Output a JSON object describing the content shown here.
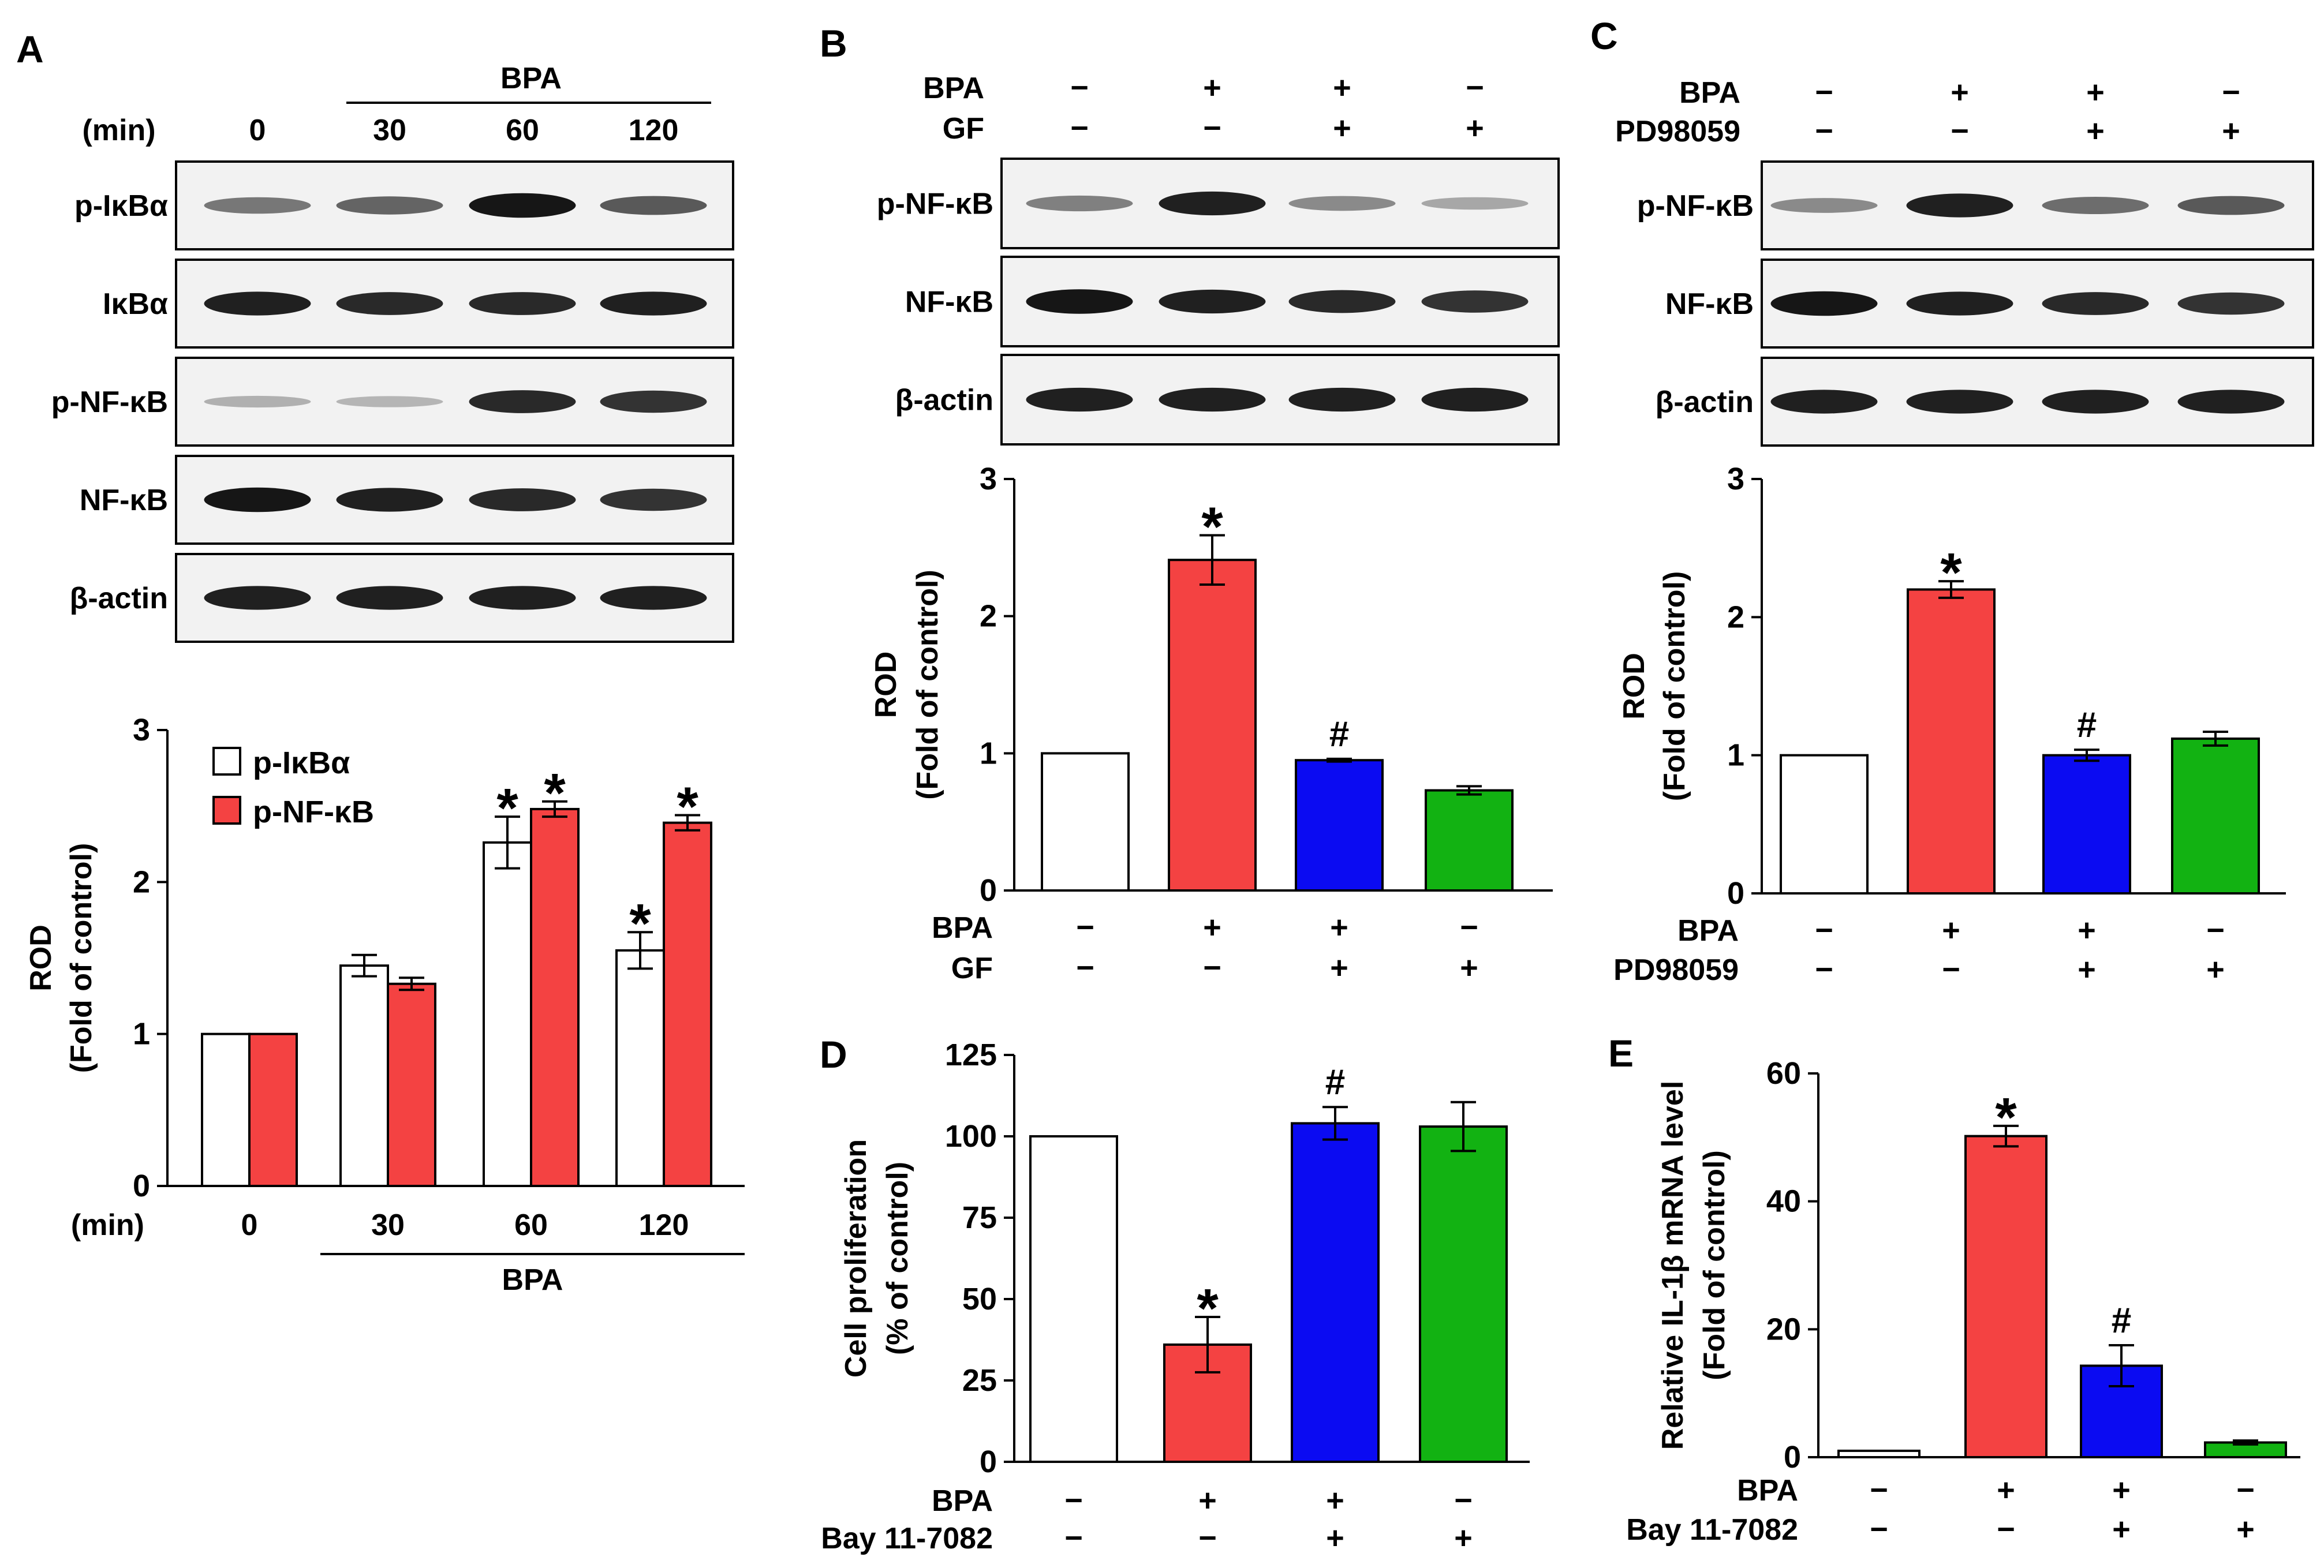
{
  "colors": {
    "ctrl": "#ffffff",
    "bpa": "#f44242",
    "inhib": "#0b0bf2",
    "alone": "#12b212",
    "ink": "#000000",
    "panel": "#f2f2f2"
  },
  "panels": {
    "A": {
      "letter": "A",
      "blot": {
        "treatment_label": "BPA",
        "unit_label": "(min)",
        "lanes": [
          "0",
          "30",
          "60",
          "120"
        ],
        "rows": [
          "p-IκBα",
          "IκBα",
          "p-NF-κB",
          "NF-κB",
          "β-actin"
        ]
      }
    },
    "B": {
      "letter": "B",
      "blot": {
        "conditions": [
          {
            "name": "BPA",
            "signs": [
              "−",
              "+",
              "+",
              "−"
            ]
          },
          {
            "name": "GF",
            "signs": [
              "−",
              "−",
              "+",
              "+"
            ]
          }
        ],
        "rows": [
          "p-NF-κB",
          "NF-κB",
          "β-actin"
        ]
      }
    },
    "C": {
      "letter": "C",
      "blot": {
        "conditions": [
          {
            "name": "BPA",
            "signs": [
              "−",
              "+",
              "+",
              "−"
            ]
          },
          {
            "name": "PD98059",
            "signs": [
              "−",
              "−",
              "+",
              "+"
            ]
          }
        ],
        "rows": [
          "p-NF-κB",
          "NF-κB",
          "β-actin"
        ]
      }
    },
    "D": {
      "letter": "D"
    },
    "E": {
      "letter": "E"
    }
  },
  "chart_data": [
    {
      "panel": "A",
      "type": "bar",
      "categories": [
        "0",
        "30",
        "60",
        "120"
      ],
      "category_prefix": "(min)",
      "group_label": "BPA",
      "ylabel": "ROD",
      "ylabel2": "(Fold of control)",
      "ylim": [
        0,
        3
      ],
      "yticks": [
        0,
        1,
        2,
        3
      ],
      "legend": "top-left",
      "series": [
        {
          "name": "p-IκBα",
          "color": "#ffffff",
          "values": [
            1.0,
            1.45,
            2.26,
            1.55
          ],
          "errors": [
            0,
            0.07,
            0.17,
            0.12
          ],
          "marks": [
            "",
            "",
            "*",
            "*"
          ]
        },
        {
          "name": "p-NF-κB",
          "color": "#f44242",
          "values": [
            1.0,
            1.33,
            2.48,
            2.39
          ],
          "errors": [
            0,
            0.04,
            0.05,
            0.05
          ],
          "marks": [
            "",
            "",
            "*",
            "*"
          ]
        }
      ]
    },
    {
      "panel": "B",
      "type": "bar",
      "ylabel": "ROD",
      "ylabel2": "(Fold of control)",
      "ylim": [
        0,
        3
      ],
      "yticks": [
        0,
        1,
        2,
        3
      ],
      "conditions": [
        {
          "name": "BPA",
          "signs": [
            "−",
            "+",
            "+",
            "−"
          ]
        },
        {
          "name": "GF",
          "signs": [
            "−",
            "−",
            "+",
            "+"
          ]
        }
      ],
      "values": [
        1.0,
        2.41,
        0.95,
        0.73
      ],
      "errors": [
        0,
        0.18,
        0.01,
        0.03
      ],
      "colors": [
        "#ffffff",
        "#f44242",
        "#0b0bf2",
        "#12b212"
      ],
      "marks": [
        "",
        "*",
        "#",
        ""
      ]
    },
    {
      "panel": "C",
      "type": "bar",
      "ylabel": "ROD",
      "ylabel2": "(Fold of control)",
      "ylim": [
        0,
        3
      ],
      "yticks": [
        0,
        1,
        2,
        3
      ],
      "conditions": [
        {
          "name": "BPA",
          "signs": [
            "−",
            "+",
            "+",
            "−"
          ]
        },
        {
          "name": "PD98059",
          "signs": [
            "−",
            "−",
            "+",
            "+"
          ]
        }
      ],
      "values": [
        1.0,
        2.2,
        1.0,
        1.12
      ],
      "errors": [
        0,
        0.06,
        0.04,
        0.05
      ],
      "colors": [
        "#ffffff",
        "#f44242",
        "#0b0bf2",
        "#12b212"
      ],
      "marks": [
        "",
        "*",
        "#",
        ""
      ]
    },
    {
      "panel": "D",
      "type": "bar",
      "ylabel": "Cell proliferation",
      "ylabel2": "(% of control)",
      "ylim": [
        0,
        125
      ],
      "yticks": [
        0,
        25,
        50,
        75,
        100,
        125
      ],
      "conditions": [
        {
          "name": "BPA",
          "signs": [
            "−",
            "+",
            "+",
            "−"
          ]
        },
        {
          "name": "Bay 11-7082",
          "signs": [
            "−",
            "−",
            "+",
            "+"
          ]
        }
      ],
      "values": [
        100,
        36,
        104,
        103
      ],
      "errors": [
        0,
        8.5,
        5,
        7.5
      ],
      "colors": [
        "#ffffff",
        "#f44242",
        "#0b0bf2",
        "#12b212"
      ],
      "marks": [
        "",
        "*",
        "#",
        ""
      ]
    },
    {
      "panel": "E",
      "type": "bar",
      "ylabel": "Relative IL-1β mRNA level",
      "ylabel2": "(Fold of control)",
      "ylim": [
        0,
        60
      ],
      "yticks": [
        0,
        20,
        40,
        60
      ],
      "conditions": [
        {
          "name": "BPA",
          "signs": [
            "−",
            "+",
            "+",
            "−"
          ]
        },
        {
          "name": "Bay 11-7082",
          "signs": [
            "−",
            "−",
            "+",
            "+"
          ]
        }
      ],
      "values": [
        1.0,
        50.2,
        14.3,
        2.3
      ],
      "errors": [
        0,
        1.6,
        3.2,
        0.3
      ],
      "colors": [
        "#ffffff",
        "#f44242",
        "#0b0bf2",
        "#12b212"
      ],
      "marks": [
        "",
        "*",
        "#",
        ""
      ]
    }
  ]
}
